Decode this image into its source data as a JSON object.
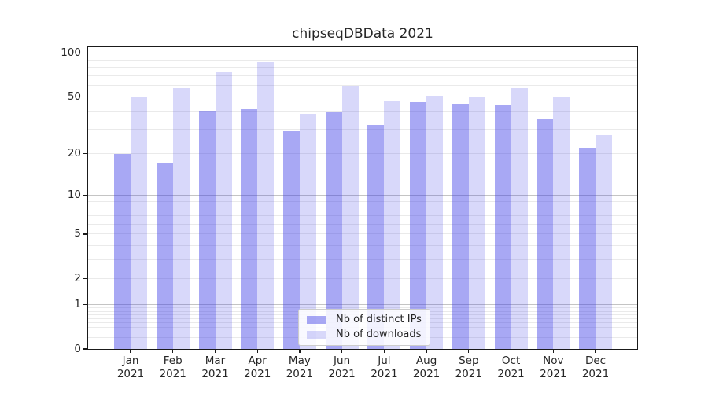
{
  "chart_data": {
    "type": "bar",
    "title": "chipseqDBData 2021",
    "categories": [
      "Jan",
      "Feb",
      "Mar",
      "Apr",
      "May",
      "Jun",
      "Jul",
      "Aug",
      "Sep",
      "Oct",
      "Nov",
      "Dec"
    ],
    "x_year_label": "2021",
    "series": [
      {
        "name": "Nb of distinct IPs",
        "color": "rgba(62,62,230,0.45)",
        "values": [
          20,
          17,
          40,
          41,
          29,
          39,
          32,
          46,
          45,
          44,
          35,
          22
        ]
      },
      {
        "name": "Nb of downloads",
        "color": "rgba(62,62,230,0.20)",
        "values": [
          50,
          58,
          75,
          87,
          38,
          59,
          47,
          51,
          50,
          58,
          50,
          27
        ]
      }
    ],
    "yscale": "log1p",
    "ylim": [
      0,
      110
    ],
    "yticks": [
      0,
      1,
      2,
      5,
      10,
      20,
      50,
      100
    ],
    "grid": "both",
    "legend_position": "lower center",
    "colors": {
      "major_gridline": "#c4c4c4",
      "minor_gridline": "#eaeaea",
      "frame": "#1a1a1a"
    }
  }
}
